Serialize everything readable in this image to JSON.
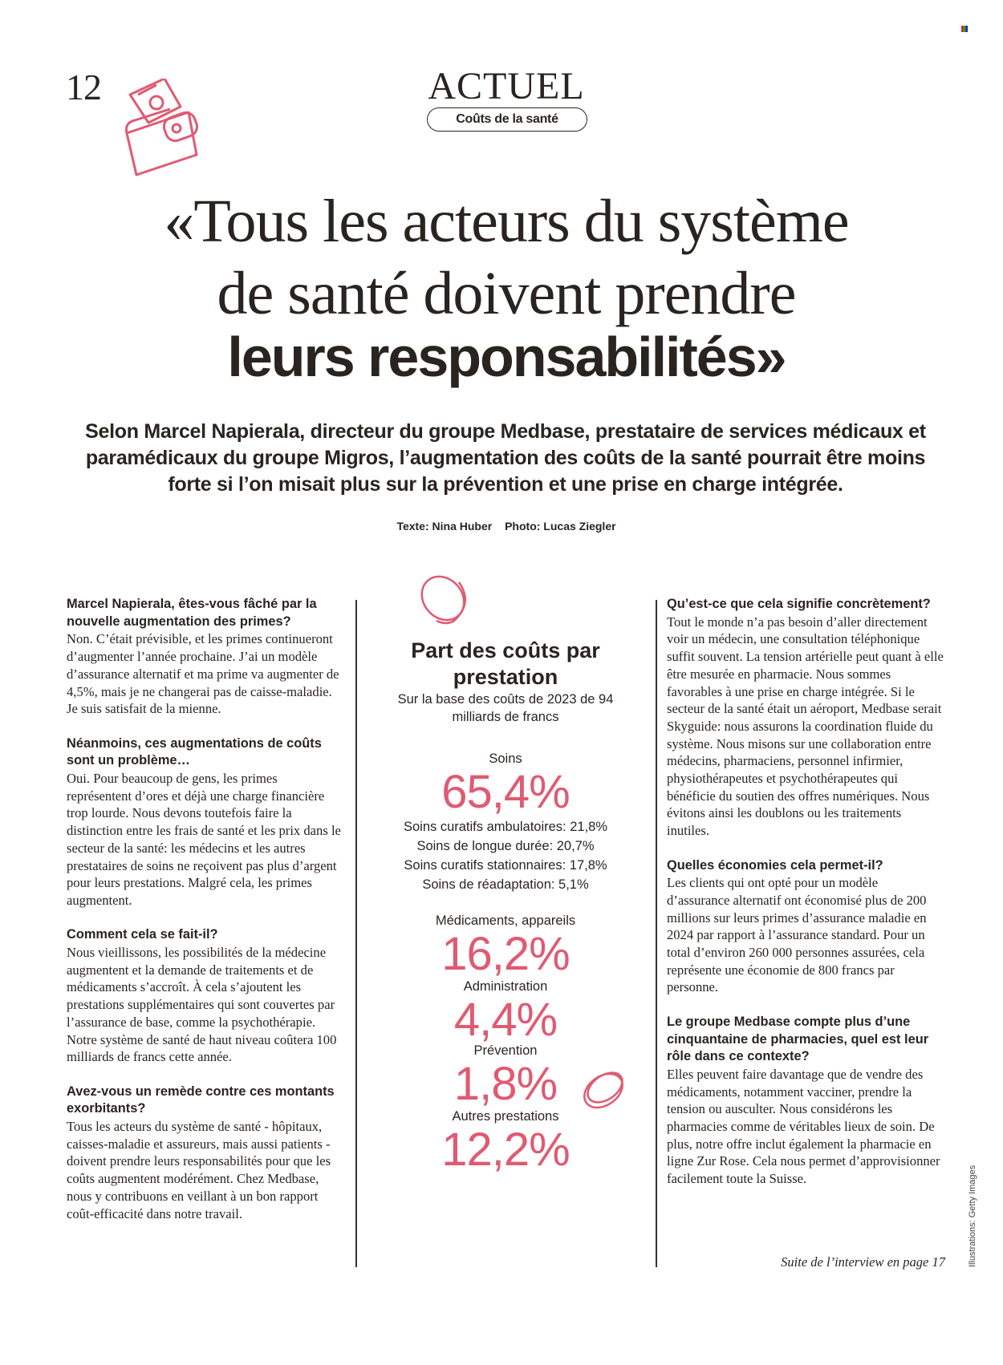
{
  "page_number": "12",
  "section": "ACTUEL",
  "tag": "Coûts de la santé",
  "headline": {
    "line1": "«Tous les acteurs du système",
    "line2": "de santé doivent prendre",
    "line3": "leurs responsabilités»"
  },
  "intro": "Selon Marcel Napierala, directeur du groupe Medbase, prestataire de services médicaux et paramédicaux du groupe Migros, l’augmentation des coûts de la santé pourrait être moins forte si l’on misait plus sur la prévention et une prise en charge intégrée.",
  "credits": {
    "text": "Texte: Nina Huber",
    "photo": "Photo: Lucas Ziegler"
  },
  "left_column": [
    {
      "q": "Marcel Napierala, êtes-vous fâché par la nouvelle augmentation des primes?",
      "a": "Non. C’était prévisible, et les primes continueront d’augmenter l’année prochaine. J’ai un modèle d’assurance alternatif et ma prime va augmenter de 4,5%, mais je ne changerai pas de caisse-maladie. Je suis satisfait de la mienne."
    },
    {
      "q": "Néanmoins, ces augmentations de coûts sont un problème…",
      "a": "Oui. Pour beaucoup de gens, les primes représentent d’ores et déjà une charge financière trop lourde. Nous devons toutefois faire la distinction entre les frais de santé et les prix dans le secteur de la santé: les médecins et les autres prestataires de soins ne reçoivent pas plus d’argent pour leurs prestations. Malgré cela, les primes augmentent."
    },
    {
      "q": "Comment cela se fait-il?",
      "a": "Nous vieillissons, les possibilités de la médecine augmentent et la demande de traitements et de médicaments s’accroît. À cela s’ajoutent les prestations supplémentaires qui sont couvertes par l’assurance de base, comme la psychothérapie. Notre système de santé de haut niveau coûtera 100 milliards de francs cette année."
    },
    {
      "q": "Avez-vous un remède contre ces montants exorbitants?",
      "a": "Tous les acteurs du système de santé - hôpitaux, caisses-maladie et assureurs, mais aussi patients - doivent prendre leurs responsabilités pour que les coûts augmentent modérément. Chez Medbase, nous y contribuons en veillant à un bon rapport coût-efficacité dans notre travail."
    }
  ],
  "infobox": {
    "title": "Part des coûts par prestation",
    "subtitle": "Sur la base des coûts de 2023 de 94 milliards de francs",
    "soins_label": "Soins",
    "soins_value": "65,4%",
    "soins_details": [
      "Soins curatifs ambulatoires: 21,8%",
      "Soins de longue durée: 20,7%",
      "Soins curatifs stationnaires: 17,8%",
      "Soins de réadaptation: 5,1%"
    ],
    "items": [
      {
        "label": "Médicaments, appareils",
        "value": "16,2%"
      },
      {
        "label": "Administration",
        "value": "4,4%"
      },
      {
        "label": "Prévention",
        "value": "1,8%"
      },
      {
        "label": "Autres prestations",
        "value": "12,2%"
      }
    ]
  },
  "right_column": [
    {
      "q": "Qu’est-ce que cela signifie concrètement?",
      "a": "Tout le monde n’a pas besoin d’aller directement voir un médecin, une consultation téléphonique suffit souvent. La tension artérielle peut quant à elle être mesurée en pharmacie. Nous sommes favorables à une prise en charge intégrée. Si le secteur de la santé était un aéroport, Medbase serait Skyguide: nous assurons la coordination fluide du système. Nous misons sur une collaboration entre médecins, pharmaciens, personnel infirmier, physiothérapeutes et psychothérapeutes qui bénéficie du soutien des offres numériques. Nous évitons ainsi les doublons ou les traitements inutiles."
    },
    {
      "q": "Quelles économies cela permet-il?",
      "a": "Les clients qui ont opté pour un modèle d’assurance alternatif ont économisé plus de 200 millions sur leurs primes d’assurance maladie en 2024 par rapport à l’assurance standard. Pour un total d’environ 260 000 personnes assurées, cela représente une économie de 800 francs par personne."
    },
    {
      "q": "Le groupe Medbase compte plus d’une cinquantaine de pharmacies, quel est leur rôle dans ce contexte?",
      "a": "Elles peuvent faire davantage que de vendre des médicaments, notamment vacciner, prendre la tension ou ausculter. Nous considérons les pharmacies comme de véritables lieux de soin. De plus, notre offre inclut également la pharmacie en ligne Zur Rose. Cela nous permet d’approvisionner facilement toute la Suisse."
    }
  ],
  "footer": "Suite de l’interview en page 17",
  "image_credit": "Illustrations: Getty Images",
  "colors": {
    "accent": "#e05a72",
    "text": "#2a2420"
  }
}
